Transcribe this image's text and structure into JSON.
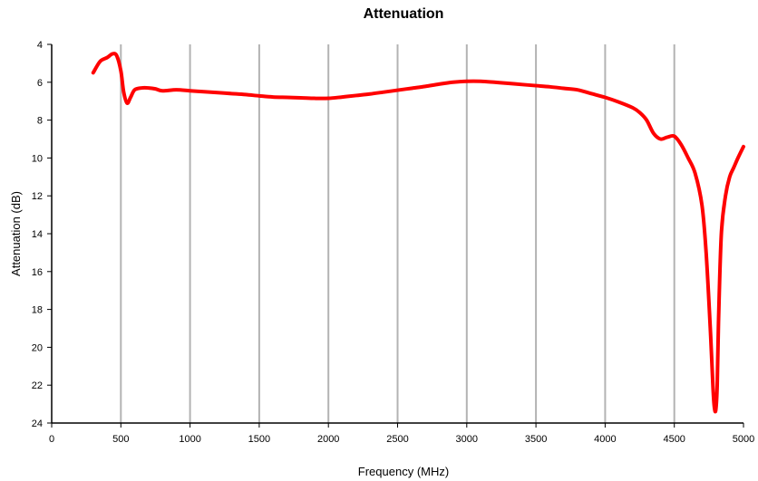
{
  "chart_data": {
    "type": "line",
    "title": "Attenuation",
    "xlabel": "Frequency (MHz)",
    "ylabel": "Attenuation (dB)",
    "xlim": [
      0,
      5000
    ],
    "ylim": [
      24,
      4
    ],
    "y_axis_inverted": true,
    "x_ticks": [
      0,
      500,
      1000,
      1500,
      2000,
      2500,
      3000,
      3500,
      4000,
      4500,
      5000
    ],
    "y_ticks": [
      4,
      6,
      8,
      10,
      12,
      14,
      16,
      18,
      20,
      22,
      24
    ],
    "grid": "vertical",
    "legend": "none",
    "line_color": "#ff0000",
    "series": [
      {
        "x": [
          300,
          350,
          400,
          440,
          470,
          500,
          520,
          545,
          570,
          600,
          650,
          700,
          750,
          800,
          900,
          1000,
          1100,
          1200,
          1300,
          1400,
          1500,
          1600,
          1700,
          1800,
          1900,
          2000,
          2100,
          2200,
          2300,
          2400,
          2500,
          2600,
          2700,
          2800,
          2900,
          3000,
          3100,
          3200,
          3300,
          3400,
          3500,
          3600,
          3700,
          3800,
          3900,
          4000,
          4100,
          4200,
          4250,
          4300,
          4350,
          4400,
          4450,
          4500,
          4550,
          4600,
          4650,
          4700,
          4730,
          4760,
          4780,
          4790,
          4800,
          4810,
          4820,
          4840,
          4870,
          4900,
          4930,
          4960,
          5000
        ],
        "y": [
          5.5,
          4.9,
          4.7,
          4.5,
          4.6,
          5.4,
          6.5,
          7.1,
          6.8,
          6.4,
          6.3,
          6.3,
          6.35,
          6.45,
          6.4,
          6.45,
          6.5,
          6.55,
          6.6,
          6.65,
          6.72,
          6.78,
          6.8,
          6.82,
          6.85,
          6.85,
          6.78,
          6.7,
          6.62,
          6.52,
          6.42,
          6.32,
          6.22,
          6.1,
          6.0,
          5.95,
          5.95,
          6.0,
          6.06,
          6.12,
          6.18,
          6.24,
          6.32,
          6.4,
          6.6,
          6.8,
          7.05,
          7.35,
          7.6,
          8.0,
          8.7,
          9.0,
          8.9,
          8.85,
          9.3,
          10.0,
          10.8,
          12.5,
          15.0,
          19.0,
          22.2,
          23.2,
          23.3,
          22.0,
          18.5,
          14.0,
          12.0,
          11.0,
          10.5,
          10.0,
          9.4
        ]
      }
    ]
  }
}
